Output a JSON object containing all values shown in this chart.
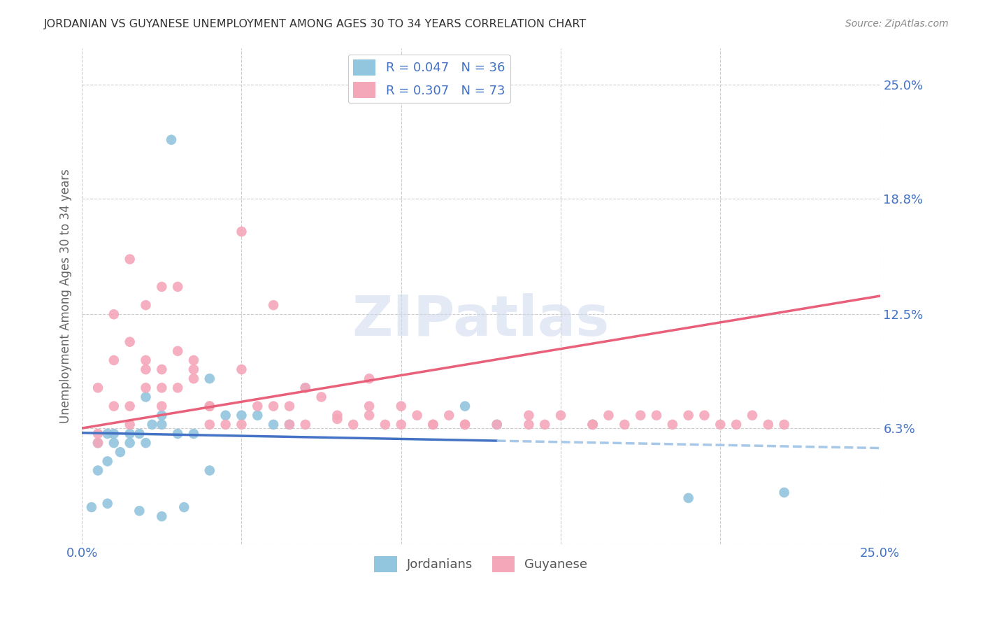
{
  "title": "JORDANIAN VS GUYANESE UNEMPLOYMENT AMONG AGES 30 TO 34 YEARS CORRELATION CHART",
  "source": "Source: ZipAtlas.com",
  "ylabel": "Unemployment Among Ages 30 to 34 years",
  "xlim": [
    0.0,
    0.25
  ],
  "ylim": [
    0.0,
    0.27
  ],
  "jordanians_color": "#92c5de",
  "guyanese_color": "#f4a7b9",
  "jordan_line_color": "#4472c4",
  "guyanese_line_color": "#e8607a",
  "jordan_dash_color": "#a8c8e8",
  "legend_jordan_R": "R = 0.047",
  "legend_jordan_N": "N = 36",
  "legend_guyanese_R": "R = 0.307",
  "legend_guyanese_N": "N = 73",
  "legend_label_jordan": "Jordanians",
  "legend_label_guyanese": "Guyanese",
  "watermark_text": "ZIPatlas",
  "bg_color": "#ffffff",
  "grid_color": "#cccccc",
  "tick_label_color": "#4472c4",
  "title_color": "#333333",
  "jordan_x": [
    0.028,
    0.005,
    0.008,
    0.01,
    0.012,
    0.015,
    0.018,
    0.02,
    0.022,
    0.025,
    0.005,
    0.008,
    0.01,
    0.015,
    0.02,
    0.025,
    0.03,
    0.035,
    0.04,
    0.045,
    0.05,
    0.055,
    0.06,
    0.065,
    0.07,
    0.12,
    0.13,
    0.16,
    0.19,
    0.22,
    0.003,
    0.008,
    0.018,
    0.025,
    0.032,
    0.04
  ],
  "jordan_y": [
    0.22,
    0.055,
    0.045,
    0.06,
    0.05,
    0.055,
    0.06,
    0.055,
    0.065,
    0.07,
    0.04,
    0.06,
    0.055,
    0.06,
    0.08,
    0.065,
    0.06,
    0.06,
    0.09,
    0.07,
    0.07,
    0.07,
    0.065,
    0.065,
    0.085,
    0.075,
    0.065,
    0.065,
    0.025,
    0.028,
    0.02,
    0.022,
    0.018,
    0.015,
    0.02,
    0.04
  ],
  "guyanese_x": [
    0.005,
    0.005,
    0.01,
    0.01,
    0.015,
    0.015,
    0.015,
    0.02,
    0.02,
    0.02,
    0.025,
    0.025,
    0.025,
    0.03,
    0.03,
    0.035,
    0.035,
    0.04,
    0.04,
    0.045,
    0.05,
    0.05,
    0.055,
    0.06,
    0.065,
    0.065,
    0.07,
    0.075,
    0.08,
    0.085,
    0.09,
    0.09,
    0.095,
    0.1,
    0.105,
    0.11,
    0.115,
    0.12,
    0.13,
    0.14,
    0.145,
    0.15,
    0.16,
    0.165,
    0.17,
    0.175,
    0.18,
    0.185,
    0.19,
    0.195,
    0.2,
    0.205,
    0.21,
    0.215,
    0.22,
    0.005,
    0.01,
    0.015,
    0.02,
    0.025,
    0.03,
    0.035,
    0.04,
    0.05,
    0.06,
    0.07,
    0.08,
    0.09,
    0.1,
    0.11,
    0.12,
    0.14,
    0.16
  ],
  "guyanese_y": [
    0.06,
    0.085,
    0.075,
    0.1,
    0.065,
    0.075,
    0.11,
    0.085,
    0.095,
    0.1,
    0.085,
    0.095,
    0.075,
    0.105,
    0.085,
    0.09,
    0.1,
    0.065,
    0.075,
    0.065,
    0.095,
    0.065,
    0.075,
    0.075,
    0.065,
    0.075,
    0.065,
    0.08,
    0.07,
    0.065,
    0.07,
    0.075,
    0.065,
    0.075,
    0.07,
    0.065,
    0.07,
    0.065,
    0.065,
    0.07,
    0.065,
    0.07,
    0.065,
    0.07,
    0.065,
    0.07,
    0.07,
    0.065,
    0.07,
    0.07,
    0.065,
    0.065,
    0.07,
    0.065,
    0.065,
    0.055,
    0.125,
    0.155,
    0.13,
    0.14,
    0.14,
    0.095,
    0.075,
    0.17,
    0.13,
    0.085,
    0.068,
    0.09,
    0.065,
    0.065,
    0.065,
    0.065,
    0.065
  ]
}
